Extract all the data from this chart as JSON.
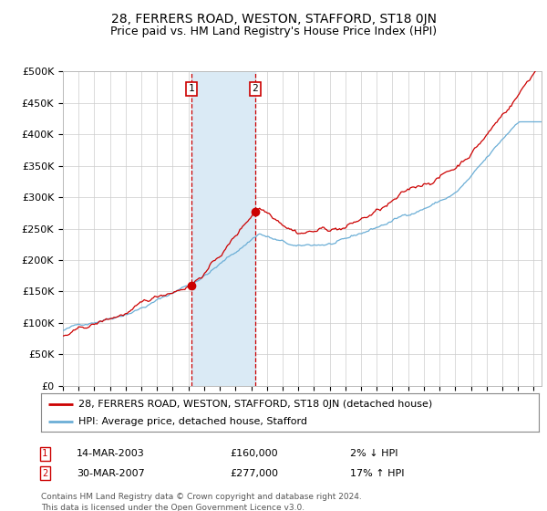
{
  "title": "28, FERRERS ROAD, WESTON, STAFFORD, ST18 0JN",
  "subtitle": "Price paid vs. HM Land Registry's House Price Index (HPI)",
  "legend_line1": "28, FERRERS ROAD, WESTON, STAFFORD, ST18 0JN (detached house)",
  "legend_line2": "HPI: Average price, detached house, Stafford",
  "transaction1_date": "14-MAR-2003",
  "transaction1_price": 160000,
  "transaction1_label": "2% ↓ HPI",
  "transaction2_date": "30-MAR-2007",
  "transaction2_price": 277000,
  "transaction2_label": "17% ↑ HPI",
  "footer": "Contains HM Land Registry data © Crown copyright and database right 2024.\nThis data is licensed under the Open Government Licence v3.0.",
  "hpi_color": "#6baed6",
  "price_color": "#cc0000",
  "bg_color": "#ffffff",
  "plot_bg_color": "#ffffff",
  "grid_color": "#cccccc",
  "shade_color": "#daeaf5",
  "ylim_max": 500000,
  "ylim_min": 0,
  "start_year": 1995,
  "end_year": 2025,
  "transaction1_year": 2003.2,
  "transaction2_year": 2007.25,
  "title_fontsize": 10,
  "subtitle_fontsize": 9
}
